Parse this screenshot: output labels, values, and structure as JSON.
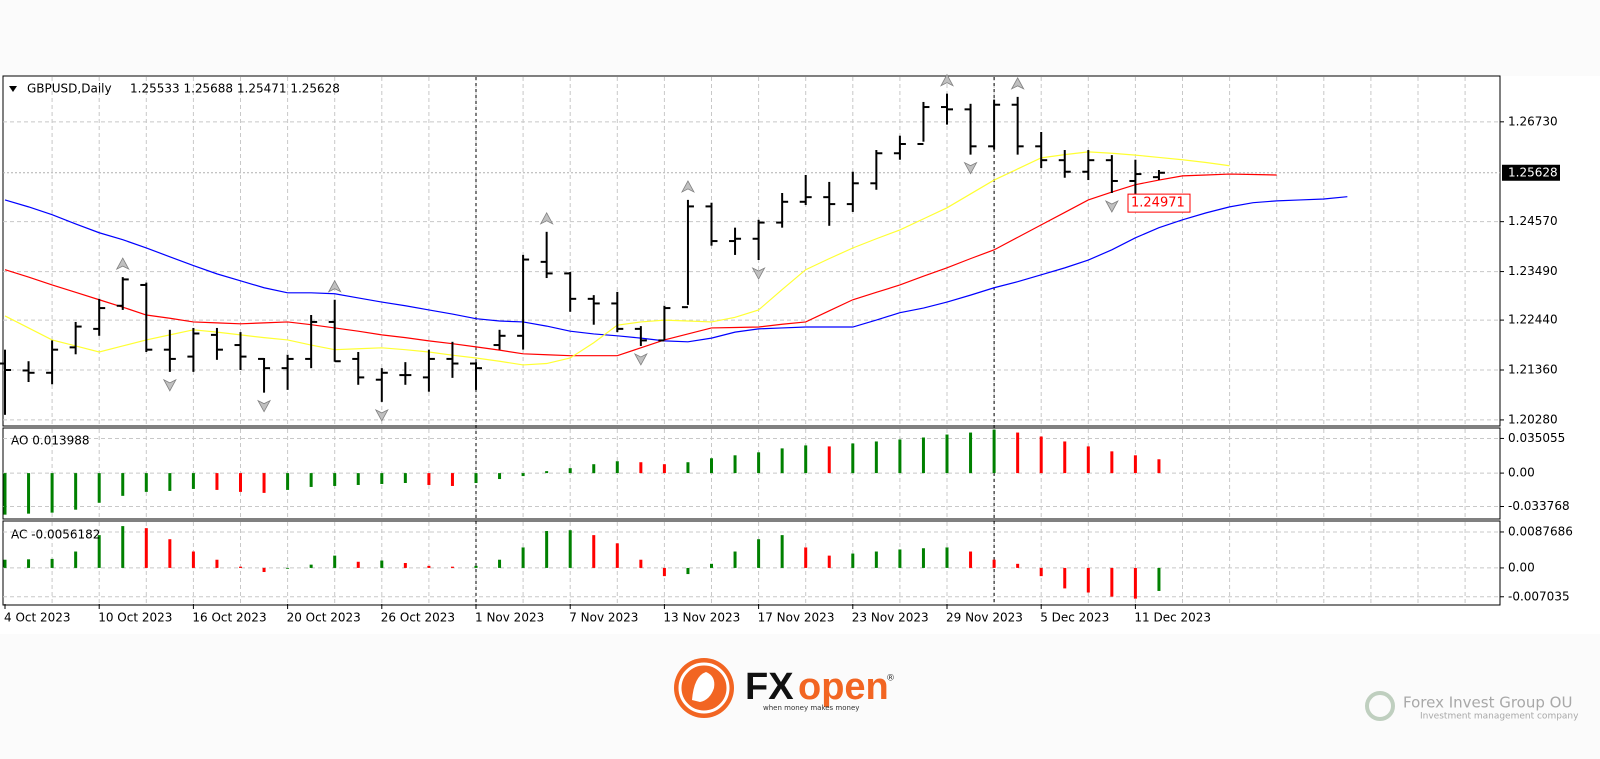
{
  "chart_data": [
    {
      "type": "ohlc",
      "symbol": "GBPUSD,Daily",
      "ohlc_text": "1.25533 1.25688 1.25471 1.25628",
      "categories": [
        "4 Oct 2023",
        null,
        null,
        null,
        "10 Oct 2023",
        null,
        null,
        null,
        "16 Oct 2023",
        null,
        null,
        null,
        "20 Oct 2023",
        null,
        null,
        null,
        "26 Oct 2023",
        null,
        null,
        null,
        "1 Nov 2023",
        null,
        null,
        null,
        "7 Nov 2023",
        null,
        null,
        null,
        "13 Nov 2023",
        null,
        null,
        null,
        "17 Nov 2023",
        null,
        null,
        null,
        "23 Nov 2023",
        null,
        null,
        null,
        "29 Nov 2023",
        null,
        null,
        null,
        "5 Dec 2023",
        null,
        null,
        null,
        "11 Dec 2023",
        null,
        null,
        null,
        null,
        null,
        null,
        null,
        null,
        null
      ],
      "open": [
        1.215,
        1.2135,
        1.213,
        1.2185,
        1.2225,
        1.2275,
        1.232,
        1.218,
        1.2165,
        1.2212,
        1.219,
        1.216,
        1.214,
        1.216,
        1.224,
        1.216,
        1.2115,
        1.2125,
        1.212,
        1.216,
        1.215,
        1.219,
        1.221,
        1.237,
        1.2345,
        1.229,
        1.228,
        1.2225,
        1.22,
        1.2272,
        1.249,
        1.2415,
        1.242,
        1.2455,
        1.25,
        1.251,
        1.2495,
        1.254,
        1.2605,
        1.2625,
        1.2705,
        1.27,
        1.262,
        1.271,
        1.262,
        1.259,
        1.2565,
        1.259,
        1.2545,
        1.25533,
        null,
        null,
        null,
        null,
        null,
        null,
        null,
        null
      ],
      "high": [
        1.218,
        1.2155,
        1.22,
        1.224,
        1.229,
        1.2337,
        1.2325,
        1.2223,
        1.2227,
        1.2227,
        1.2218,
        1.2162,
        1.2169,
        1.2255,
        1.2288,
        1.2175,
        1.214,
        1.2153,
        1.218,
        1.2197,
        1.2153,
        1.2223,
        1.2385,
        1.2435,
        1.2348,
        1.2298,
        1.2305,
        1.2231,
        1.2275,
        1.2504,
        1.2498,
        1.2444,
        1.2461,
        1.2519,
        1.2558,
        1.2543,
        1.2565,
        1.2612,
        1.2643,
        1.2716,
        1.2734,
        1.2712,
        1.2721,
        1.2727,
        1.2651,
        1.2612,
        1.2612,
        1.2601,
        1.2591,
        1.25688,
        null,
        null,
        null,
        null,
        null,
        null,
        null,
        null
      ],
      "low": [
        1.2039,
        1.211,
        1.2105,
        1.217,
        1.221,
        1.2266,
        1.2175,
        1.2132,
        1.2132,
        1.2158,
        1.2136,
        1.2087,
        1.2093,
        1.214,
        1.2154,
        1.2104,
        1.2067,
        1.2104,
        1.2089,
        1.2119,
        1.2093,
        1.218,
        1.218,
        1.2335,
        1.2262,
        1.2234,
        1.2218,
        1.2188,
        1.2201,
        1.2277,
        1.2405,
        1.2385,
        1.2374,
        1.2444,
        1.2493,
        1.2448,
        1.2478,
        1.2526,
        1.2591,
        1.263,
        1.2667,
        1.2602,
        1.2613,
        1.2602,
        1.2573,
        1.2552,
        1.2547,
        1.2519,
        1.2497,
        1.25471,
        null,
        null,
        null,
        null,
        null,
        null,
        null,
        null
      ],
      "close": [
        1.2136,
        1.213,
        1.218,
        1.223,
        1.227,
        1.2332,
        1.218,
        1.216,
        1.2215,
        1.218,
        1.2165,
        1.214,
        1.216,
        1.224,
        1.2155,
        1.212,
        1.213,
        1.2125,
        1.216,
        1.215,
        1.214,
        1.221,
        1.2375,
        1.2345,
        1.229,
        1.228,
        1.2225,
        1.22,
        1.227,
        1.249,
        1.2415,
        1.242,
        1.2455,
        1.25,
        1.251,
        1.2495,
        1.254,
        1.2605,
        1.2625,
        1.2705,
        1.27,
        1.262,
        1.271,
        1.262,
        1.259,
        1.2565,
        1.259,
        1.2545,
        1.256,
        1.25628,
        null,
        null,
        null,
        null,
        null,
        null,
        null,
        null
      ],
      "bar_color": "#000000",
      "series": [
        {
          "color": "#0000ff",
          "values": [
            1.2504,
            1.2489,
            1.2472,
            1.2452,
            1.2433,
            1.2418,
            1.24,
            1.2381,
            1.2362,
            1.2344,
            1.2329,
            1.2314,
            1.2303,
            1.2303,
            1.2301,
            1.2292,
            1.2283,
            1.2275,
            1.2266,
            1.2257,
            1.2247,
            1.2242,
            1.224,
            1.2231,
            1.222,
            1.2214,
            1.221,
            1.2205,
            1.2199,
            1.2197,
            1.2205,
            1.2218,
            1.2225,
            1.2227,
            1.2229,
            1.2229,
            1.2229,
            1.2244,
            1.226,
            1.227,
            1.2283,
            1.2298,
            1.2314,
            1.2327,
            1.2342,
            1.2357,
            1.2374,
            1.2396,
            1.2422,
            1.2444,
            1.2461,
            1.2476,
            1.2489,
            1.2498,
            1.2502,
            1.2504,
            1.2506,
            1.2511
          ]
        },
        {
          "color": "#ff0000",
          "values": [
            1.2353,
            1.2337,
            1.232,
            1.2304,
            1.2288,
            1.2272,
            1.2255,
            1.2248,
            1.224,
            1.2238,
            1.2236,
            1.2238,
            1.224,
            1.2234,
            1.2227,
            1.222,
            1.2212,
            1.2206,
            1.2199,
            1.2193,
            1.2186,
            1.2179,
            1.2171,
            1.2169,
            1.2167,
            1.2167,
            1.2167,
            1.2184,
            1.2201,
            1.2214,
            1.2227,
            1.2228,
            1.2229,
            1.2235,
            1.224,
            1.2264,
            1.2288,
            1.2304,
            1.232,
            1.2339,
            1.2357,
            1.2377,
            1.2396,
            1.2423,
            1.245,
            1.2477,
            1.2504,
            1.2521,
            1.2537,
            1.2547,
            1.2556,
            1.2558,
            1.256,
            1.2559,
            1.2558,
            null,
            null,
            null
          ]
        },
        {
          "color": "#ffff33",
          "values": [
            1.2253,
            1.2227,
            1.2201,
            1.2188,
            1.2175,
            1.2188,
            1.2201,
            1.2212,
            1.2223,
            1.2218,
            1.2212,
            1.2206,
            1.2201,
            1.219,
            1.218,
            1.2182,
            1.2184,
            1.218,
            1.2175,
            1.2168,
            1.2162,
            1.2155,
            1.2147,
            1.215,
            1.2162,
            1.2195,
            1.2233,
            1.224,
            1.2244,
            1.2242,
            1.224,
            1.225,
            1.2266,
            1.231,
            1.2353,
            1.2377,
            1.24,
            1.242,
            1.2439,
            1.2463,
            1.2487,
            1.2517,
            1.2547,
            1.2571,
            1.2595,
            1.2602,
            1.2608,
            1.2605,
            1.2601,
            1.2596,
            1.2591,
            1.2585,
            1.2578,
            null,
            null,
            null,
            null,
            null
          ]
        }
      ],
      "fractals_up": [
        5,
        14,
        23,
        29,
        40,
        43
      ],
      "fractals_down": [
        7,
        11,
        16,
        27,
        32,
        41,
        47
      ],
      "last_price": 1.25628,
      "price_marker": 1.24971,
      "ylim": [
        1.2017,
        1.277
      ],
      "yticks": [
        {
          "value": 1.2673,
          "label": "1.26730"
        },
        {
          "value": 1.2457,
          "label": "1.24570"
        },
        {
          "value": 1.2349,
          "label": "1.23490"
        },
        {
          "value": 1.2244,
          "label": "1.22440"
        },
        {
          "value": 1.2136,
          "label": "1.21360"
        },
        {
          "value": 1.2028,
          "label": "1.20280"
        }
      ],
      "grid": true
    },
    {
      "type": "histogram",
      "title": "AO 0.013988",
      "values": [
        -0.042,
        -0.041,
        -0.04,
        -0.037,
        -0.03,
        -0.023,
        -0.019,
        -0.018,
        -0.016,
        -0.017,
        -0.019,
        -0.02,
        -0.017,
        -0.014,
        -0.013,
        -0.012,
        -0.011,
        -0.01,
        -0.012,
        -0.013,
        -0.01,
        -0.006,
        -0.003,
        0.002,
        0.005,
        0.009,
        0.012,
        0.011,
        0.009,
        0.011,
        0.015,
        0.018,
        0.021,
        0.025,
        0.028,
        0.027,
        0.03,
        0.032,
        0.034,
        0.036,
        0.039,
        0.041,
        0.044,
        0.041,
        0.037,
        0.032,
        0.027,
        0.022,
        0.018,
        0.013988
      ],
      "up_color": "#008000",
      "down_color": "#ff0000",
      "ylim": [
        -0.0454,
        0.0446
      ],
      "yticks": [
        0.035055,
        {
          "value": 0,
          "label": "0.00"
        },
        -0.033768
      ]
    },
    {
      "type": "histogram",
      "title": "AC -0.0056182",
      "values": [
        0.002,
        0.0021,
        0.0022,
        0.004,
        0.008,
        0.0102,
        0.0097,
        0.007,
        0.004,
        0.002,
        0.0003,
        -0.001,
        -0.0002,
        0.0008,
        0.003,
        0.0015,
        0.0018,
        0.0012,
        0.0005,
        0.0003,
        0.0005,
        0.002,
        0.005,
        0.009,
        0.0092,
        0.008,
        0.006,
        0.002,
        -0.002,
        -0.0015,
        0.001,
        0.004,
        0.007,
        0.008,
        0.005,
        0.003,
        0.0035,
        0.004,
        0.0045,
        0.0048,
        0.005,
        0.004,
        0.002,
        0.001,
        -0.002,
        -0.005,
        -0.006,
        -0.007,
        -0.0075,
        -0.0056182
      ],
      "up_color": "#008000",
      "down_color": "#ff0000",
      "ylim": [
        -0.0088,
        0.0112
      ],
      "yticks": [
        0.0087686,
        {
          "value": 0,
          "label": "0.00"
        },
        -0.007035
      ]
    }
  ],
  "branding": {
    "fx": "FX",
    "open": "open",
    "reg": "®",
    "tagline": "when money makes money",
    "partner": "Forex Invest Group OU",
    "partner_sub": "Investment management company"
  }
}
